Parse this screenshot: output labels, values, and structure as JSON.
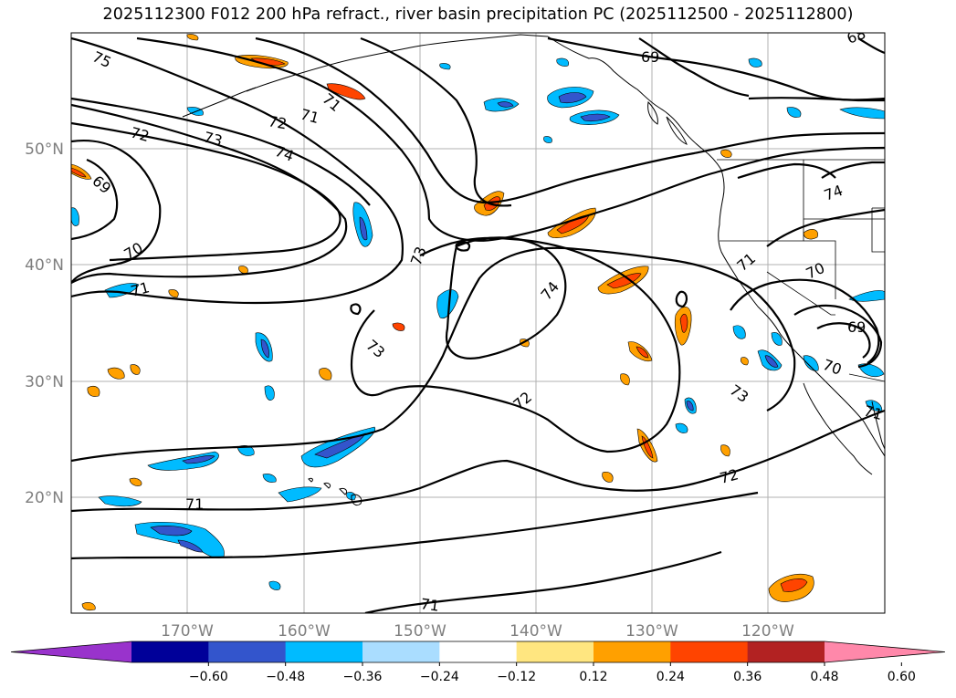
{
  "title": "2025112300 F012 200 hPa refract., river basin precipitation PC (2025112500 - 2025112800)",
  "lat_labels": [
    "50°N",
    "40°N",
    "30°N",
    "20°N"
  ],
  "lon_labels": [
    "170°W",
    "160°W",
    "150°W",
    "140°W",
    "130°W",
    "120°W"
  ],
  "colorbar": {
    "colors": [
      "#9933cc",
      "#000099",
      "#3355cc",
      "#00bbff",
      "#aaddff",
      "#ffffff",
      "#ffe680",
      "#ffa000",
      "#ff4400",
      "#b22222",
      "#ff88aa"
    ],
    "tick_labels": [
      "−0.60",
      "−0.48",
      "−0.36",
      "−0.24",
      "−0.12",
      "0.12",
      "0.24",
      "0.36",
      "0.48",
      "0.60"
    ]
  },
  "contour_labels": [
    "75",
    "72",
    "73",
    "71",
    "74",
    "69",
    "70",
    "71",
    "72",
    "73",
    "71",
    "74",
    "73",
    "72",
    "72",
    "71",
    "73",
    "71",
    "70",
    "69",
    "70",
    "71",
    "74",
    "69",
    "68",
    "71"
  ],
  "colors": {
    "contour": "#000000",
    "coast": "#000000",
    "grid": "#b0b0b0",
    "tick_text": "#7f7f7f"
  },
  "chart_data": {
    "type": "contour-map",
    "field": "200 hPa refractivity contours with precipitation PC shading",
    "xlim": [
      "180°W",
      "110°W"
    ],
    "ylim": [
      "10°N",
      "60°N"
    ],
    "contour_levels": [
      68,
      69,
      70,
      71,
      72,
      73,
      74,
      75
    ],
    "shading_levels": [
      -0.6,
      -0.48,
      -0.36,
      -0.24,
      -0.12,
      0.12,
      0.24,
      0.36,
      0.48,
      0.6
    ],
    "grid": true
  }
}
